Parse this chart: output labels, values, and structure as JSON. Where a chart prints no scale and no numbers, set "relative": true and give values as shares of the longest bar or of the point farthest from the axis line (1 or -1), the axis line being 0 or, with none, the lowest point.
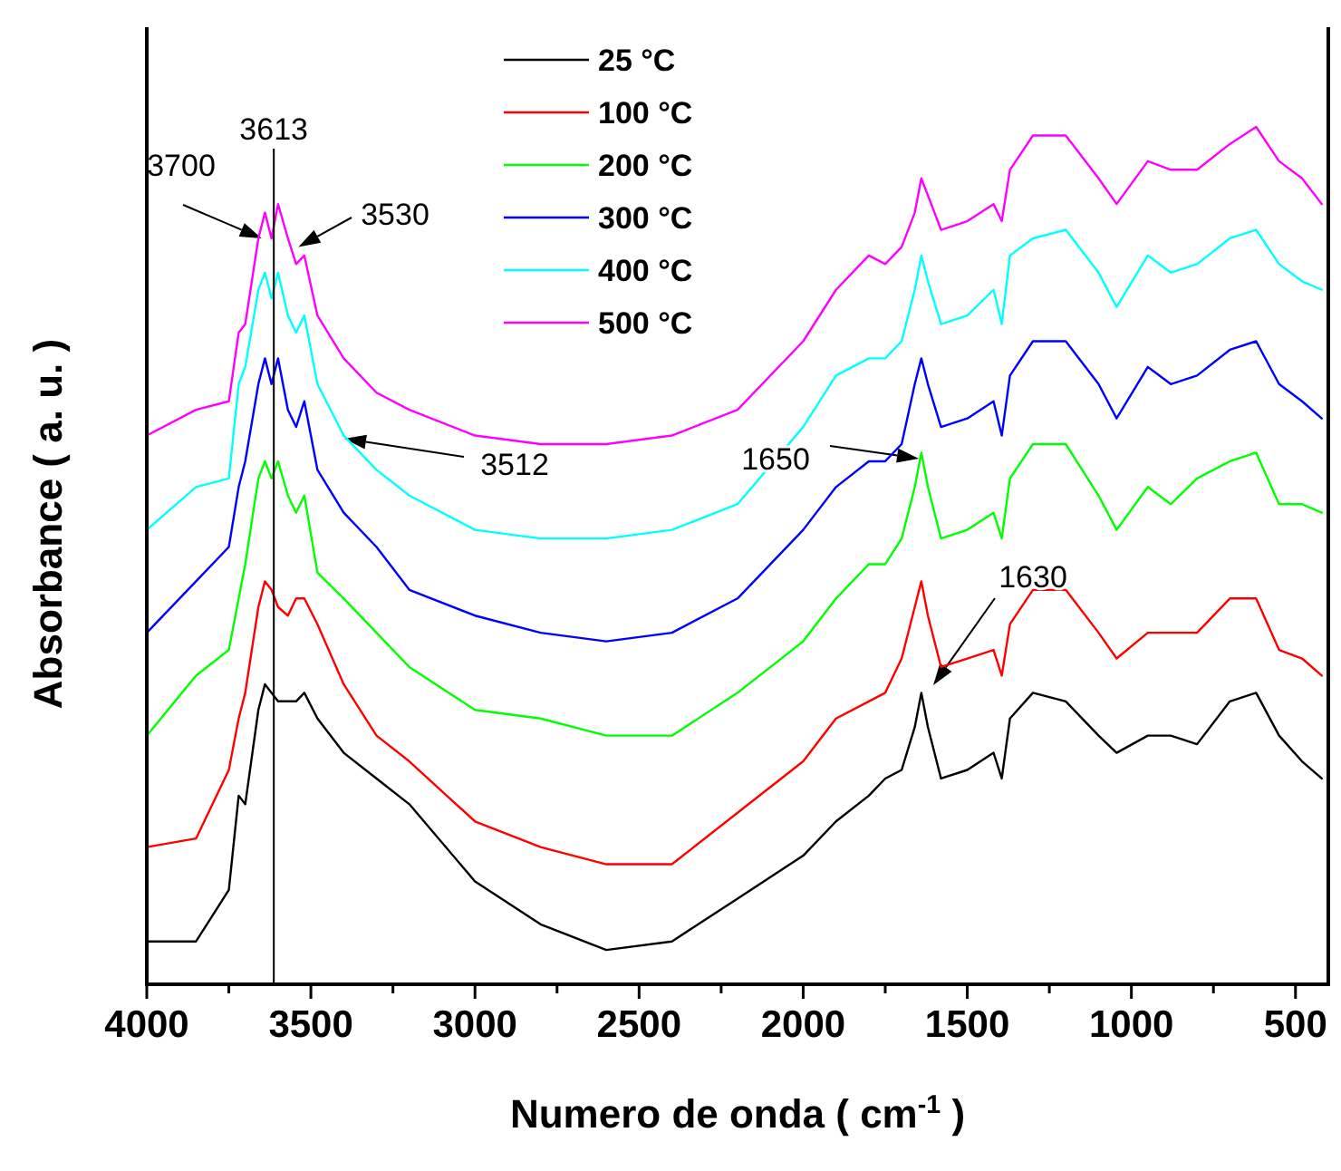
{
  "chart_data": {
    "type": "line",
    "relative": true,
    "xlabel": "Numero de onda ( cm$^{-1}$ )",
    "ylabel": "Absorbance ( a. u. )",
    "xlim": [
      4000,
      400
    ],
    "xticks": [
      4000,
      {
        "value": 3750,
        "label": null
      },
      3500,
      {
        "value": 3250,
        "label": null
      },
      3000,
      {
        "value": 2750,
        "label": null
      },
      2500,
      {
        "value": 2250,
        "label": null
      },
      2000,
      {
        "value": 1750,
        "label": null
      },
      1500,
      {
        "value": 1250,
        "label": null
      },
      1000,
      {
        "value": 750,
        "label": null
      },
      500
    ],
    "x": [
      4000,
      3850,
      3750,
      3720,
      3700,
      3660,
      3640,
      3620,
      3600,
      3570,
      3545,
      3520,
      3480,
      3400,
      3300,
      3200,
      3000,
      2800,
      2600,
      2400,
      2200,
      2000,
      1900,
      1800,
      1750,
      1700,
      1660,
      1640,
      1620,
      1580,
      1500,
      1420,
      1395,
      1370,
      1300,
      1200,
      1100,
      1045,
      950,
      880,
      800,
      700,
      620,
      550,
      480,
      420
    ],
    "legend": "top",
    "series": [
      {
        "name": "25 °C",
        "color": "#000000",
        "values": [
          0.05,
          0.05,
          0.11,
          0.22,
          0.21,
          0.32,
          0.35,
          0.34,
          0.33,
          0.33,
          0.33,
          0.34,
          0.31,
          0.27,
          0.24,
          0.21,
          0.12,
          0.07,
          0.04,
          0.05,
          0.1,
          0.15,
          0.19,
          0.22,
          0.24,
          0.25,
          0.3,
          0.34,
          0.3,
          0.24,
          0.25,
          0.27,
          0.24,
          0.31,
          0.34,
          0.33,
          0.29,
          0.27,
          0.29,
          0.29,
          0.28,
          0.33,
          0.34,
          0.29,
          0.26,
          0.24
        ]
      },
      {
        "name": "100 °C",
        "color": "#ff0000",
        "values": [
          0.16,
          0.17,
          0.25,
          0.31,
          0.34,
          0.44,
          0.47,
          0.46,
          0.44,
          0.43,
          0.45,
          0.45,
          0.42,
          0.35,
          0.29,
          0.26,
          0.19,
          0.16,
          0.14,
          0.14,
          0.2,
          0.26,
          0.31,
          0.33,
          0.34,
          0.38,
          0.44,
          0.47,
          0.43,
          0.37,
          0.38,
          0.39,
          0.36,
          0.42,
          0.46,
          0.46,
          0.41,
          0.38,
          0.41,
          0.41,
          0.41,
          0.45,
          0.45,
          0.39,
          0.38,
          0.36
        ]
      },
      {
        "name": "200 °C",
        "color": "#00ff00",
        "values": [
          0.29,
          0.36,
          0.39,
          0.45,
          0.49,
          0.59,
          0.61,
          0.59,
          0.61,
          0.57,
          0.55,
          0.57,
          0.48,
          0.45,
          0.41,
          0.37,
          0.32,
          0.31,
          0.29,
          0.29,
          0.34,
          0.4,
          0.45,
          0.49,
          0.49,
          0.52,
          0.58,
          0.62,
          0.58,
          0.52,
          0.53,
          0.55,
          0.52,
          0.59,
          0.63,
          0.63,
          0.57,
          0.53,
          0.58,
          0.56,
          0.59,
          0.61,
          0.62,
          0.56,
          0.56,
          0.55
        ]
      },
      {
        "name": "300 °C",
        "color": "#0000ff",
        "values": [
          0.41,
          0.47,
          0.51,
          0.58,
          0.61,
          0.7,
          0.73,
          0.7,
          0.73,
          0.67,
          0.65,
          0.68,
          0.6,
          0.55,
          0.51,
          0.46,
          0.43,
          0.41,
          0.4,
          0.41,
          0.45,
          0.53,
          0.58,
          0.61,
          0.61,
          0.63,
          0.7,
          0.73,
          0.7,
          0.65,
          0.66,
          0.68,
          0.64,
          0.71,
          0.75,
          0.75,
          0.7,
          0.66,
          0.72,
          0.7,
          0.71,
          0.74,
          0.75,
          0.7,
          0.68,
          0.66
        ]
      },
      {
        "name": "400 °C",
        "color": "#00ffff",
        "values": [
          0.53,
          0.58,
          0.59,
          0.7,
          0.72,
          0.81,
          0.83,
          0.8,
          0.83,
          0.78,
          0.76,
          0.78,
          0.7,
          0.64,
          0.6,
          0.57,
          0.53,
          0.52,
          0.52,
          0.53,
          0.56,
          0.65,
          0.71,
          0.73,
          0.73,
          0.75,
          0.81,
          0.85,
          0.82,
          0.77,
          0.78,
          0.81,
          0.77,
          0.85,
          0.87,
          0.88,
          0.83,
          0.79,
          0.85,
          0.83,
          0.84,
          0.87,
          0.88,
          0.84,
          0.82,
          0.81
        ]
      },
      {
        "name": "500 °C",
        "color": "#ff00ff",
        "values": [
          0.64,
          0.67,
          0.68,
          0.76,
          0.77,
          0.87,
          0.9,
          0.87,
          0.91,
          0.87,
          0.84,
          0.85,
          0.78,
          0.73,
          0.69,
          0.67,
          0.64,
          0.63,
          0.63,
          0.64,
          0.67,
          0.75,
          0.81,
          0.85,
          0.84,
          0.86,
          0.9,
          0.94,
          0.92,
          0.88,
          0.89,
          0.91,
          0.89,
          0.95,
          0.99,
          0.99,
          0.94,
          0.91,
          0.96,
          0.95,
          0.95,
          0.98,
          1,
          0.96,
          0.94,
          0.91
        ]
      }
    ],
    "ref_lines": [
      {
        "axis": "x",
        "value": 3613,
        "label": "3613",
        "color": "#000000"
      }
    ],
    "annotations": [
      {
        "text": "3700",
        "x": 3650,
        "y": 0.87
      },
      {
        "text": "3530",
        "x": 3538,
        "y": 0.86
      },
      "3512",
      "1650",
      "1630"
    ]
  }
}
